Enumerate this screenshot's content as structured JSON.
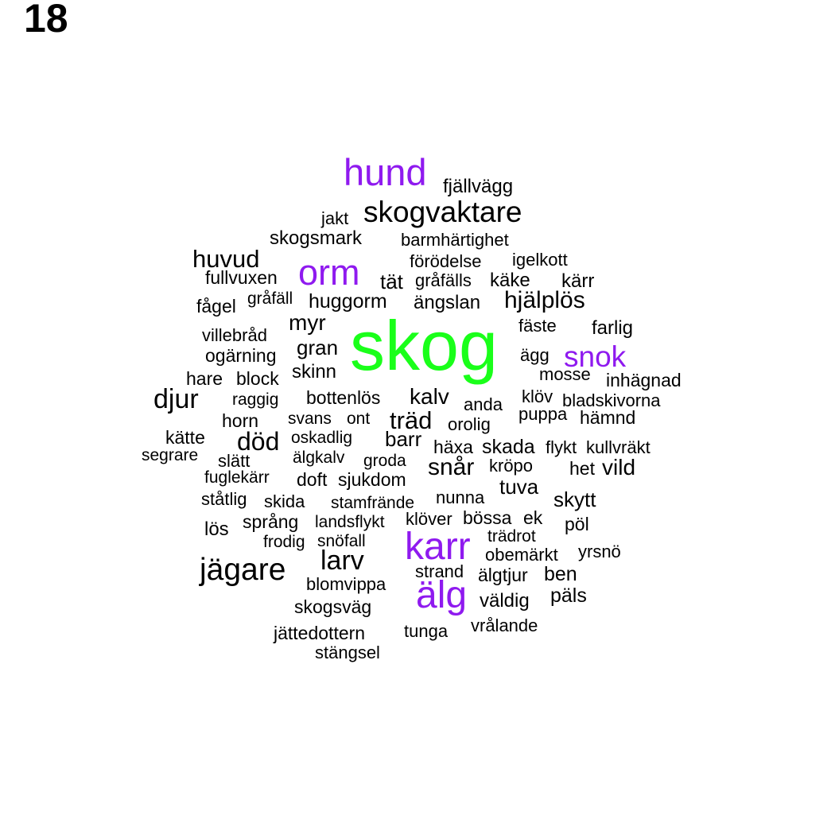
{
  "panel_label": "18",
  "colors": {
    "center": "#1aff1a",
    "highlight": "#8f1aef",
    "default": "#000000"
  },
  "words": [
    {
      "text": "skog",
      "group": "center"
    },
    {
      "text": "hund",
      "group": "highlight"
    },
    {
      "text": "orm",
      "group": "highlight"
    },
    {
      "text": "snok",
      "group": "highlight"
    },
    {
      "text": "karr",
      "group": "highlight"
    },
    {
      "text": "älg",
      "group": "highlight"
    },
    {
      "text": "fjällvägg",
      "group": "default"
    },
    {
      "text": "skogvaktare",
      "group": "default"
    },
    {
      "text": "jakt",
      "group": "default"
    },
    {
      "text": "skogsmark",
      "group": "default"
    },
    {
      "text": "barmhärtighet",
      "group": "default"
    },
    {
      "text": "huvud",
      "group": "default"
    },
    {
      "text": "förödelse",
      "group": "default"
    },
    {
      "text": "igelkott",
      "group": "default"
    },
    {
      "text": "fullvuxen",
      "group": "default"
    },
    {
      "text": "tät",
      "group": "default"
    },
    {
      "text": "gråfälls",
      "group": "default"
    },
    {
      "text": "käke",
      "group": "default"
    },
    {
      "text": "kärr",
      "group": "default"
    },
    {
      "text": "gråfäll",
      "group": "default"
    },
    {
      "text": "fågel",
      "group": "default"
    },
    {
      "text": "huggorm",
      "group": "default"
    },
    {
      "text": "ängslan",
      "group": "default"
    },
    {
      "text": "hjälplös",
      "group": "default"
    },
    {
      "text": "myr",
      "group": "default"
    },
    {
      "text": "fäste",
      "group": "default"
    },
    {
      "text": "farlig",
      "group": "default"
    },
    {
      "text": "villebråd",
      "group": "default"
    },
    {
      "text": "gran",
      "group": "default"
    },
    {
      "text": "ogärning",
      "group": "default"
    },
    {
      "text": "ägg",
      "group": "default"
    },
    {
      "text": "skinn",
      "group": "default"
    },
    {
      "text": "mosse",
      "group": "default"
    },
    {
      "text": "hare",
      "group": "default"
    },
    {
      "text": "block",
      "group": "default"
    },
    {
      "text": "inhägnad",
      "group": "default"
    },
    {
      "text": "djur",
      "group": "default"
    },
    {
      "text": "raggig",
      "group": "default"
    },
    {
      "text": "bottenlös",
      "group": "default"
    },
    {
      "text": "kalv",
      "group": "default"
    },
    {
      "text": "klöv",
      "group": "default"
    },
    {
      "text": "anda",
      "group": "default"
    },
    {
      "text": "bladskivorna",
      "group": "default"
    },
    {
      "text": "puppa",
      "group": "default"
    },
    {
      "text": "horn",
      "group": "default"
    },
    {
      "text": "svans",
      "group": "default"
    },
    {
      "text": "ont",
      "group": "default"
    },
    {
      "text": "träd",
      "group": "default"
    },
    {
      "text": "hämnd",
      "group": "default"
    },
    {
      "text": "orolig",
      "group": "default"
    },
    {
      "text": "kätte",
      "group": "default"
    },
    {
      "text": "död",
      "group": "default"
    },
    {
      "text": "oskadlig",
      "group": "default"
    },
    {
      "text": "barr",
      "group": "default"
    },
    {
      "text": "häxa",
      "group": "default"
    },
    {
      "text": "skada",
      "group": "default"
    },
    {
      "text": "flykt",
      "group": "default"
    },
    {
      "text": "kullvräkt",
      "group": "default"
    },
    {
      "text": "segrare",
      "group": "default"
    },
    {
      "text": "slätt",
      "group": "default"
    },
    {
      "text": "älgkalv",
      "group": "default"
    },
    {
      "text": "groda",
      "group": "default"
    },
    {
      "text": "snår",
      "group": "default"
    },
    {
      "text": "kröpo",
      "group": "default"
    },
    {
      "text": "het",
      "group": "default"
    },
    {
      "text": "vild",
      "group": "default"
    },
    {
      "text": "fuglekärr",
      "group": "default"
    },
    {
      "text": "doft",
      "group": "default"
    },
    {
      "text": "sjukdom",
      "group": "default"
    },
    {
      "text": "tuva",
      "group": "default"
    },
    {
      "text": "ståtlig",
      "group": "default"
    },
    {
      "text": "skida",
      "group": "default"
    },
    {
      "text": "stamfrände",
      "group": "default"
    },
    {
      "text": "nunna",
      "group": "default"
    },
    {
      "text": "skytt",
      "group": "default"
    },
    {
      "text": "lös",
      "group": "default"
    },
    {
      "text": "språng",
      "group": "default"
    },
    {
      "text": "landsflykt",
      "group": "default"
    },
    {
      "text": "klöver",
      "group": "default"
    },
    {
      "text": "bössa",
      "group": "default"
    },
    {
      "text": "ek",
      "group": "default"
    },
    {
      "text": "pöl",
      "group": "default"
    },
    {
      "text": "frodig",
      "group": "default"
    },
    {
      "text": "snöfall",
      "group": "default"
    },
    {
      "text": "trädrot",
      "group": "default"
    },
    {
      "text": "jägare",
      "group": "default"
    },
    {
      "text": "larv",
      "group": "default"
    },
    {
      "text": "obemärkt",
      "group": "default"
    },
    {
      "text": "yrsnö",
      "group": "default"
    },
    {
      "text": "strand",
      "group": "default"
    },
    {
      "text": "blomvippa",
      "group": "default"
    },
    {
      "text": "älgtjur",
      "group": "default"
    },
    {
      "text": "ben",
      "group": "default"
    },
    {
      "text": "väldig",
      "group": "default"
    },
    {
      "text": "päls",
      "group": "default"
    },
    {
      "text": "skogsväg",
      "group": "default"
    },
    {
      "text": "vrålande",
      "group": "default"
    },
    {
      "text": "tunga",
      "group": "default"
    },
    {
      "text": "jättedottern",
      "group": "default"
    },
    {
      "text": "stängsel",
      "group": "default"
    }
  ]
}
